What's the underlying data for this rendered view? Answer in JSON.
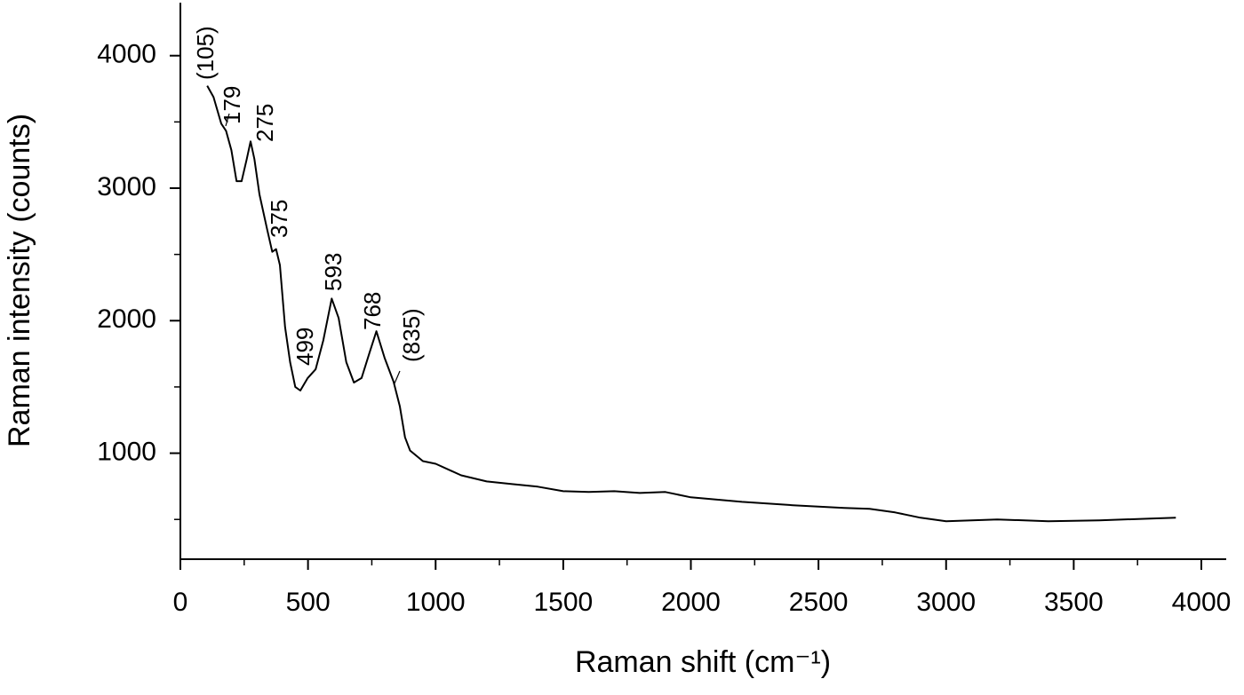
{
  "chart_data": {
    "type": "line",
    "x_label": "Raman shift (cm⁻¹)",
    "y_label": "Raman intensity (counts)",
    "xlim": [
      0,
      4100
    ],
    "ylim": [
      200,
      4400
    ],
    "xticks": [
      0,
      500,
      1000,
      1500,
      2000,
      2500,
      3000,
      3500,
      4000
    ],
    "yticks": [
      1000,
      2000,
      3000,
      4000
    ],
    "xminorticks": [
      250,
      750,
      1250,
      1750,
      2250,
      2750,
      3250,
      3750
    ],
    "yminorticks": [
      500,
      1500,
      2500,
      3500
    ],
    "grid": false,
    "series": [
      {
        "color": "#000000",
        "x": [
          105,
          130,
          160,
          179,
          200,
          220,
          240,
          260,
          275,
          290,
          310,
          340,
          360,
          375,
          390,
          410,
          430,
          450,
          470,
          499,
          530,
          560,
          593,
          620,
          650,
          680,
          710,
          740,
          768,
          800,
          835,
          860,
          880,
          900,
          950,
          1000,
          1100,
          1200,
          1300,
          1400,
          1500,
          1600,
          1700,
          1800,
          1900,
          2000,
          2200,
          2400,
          2600,
          2700,
          2800,
          2900,
          3000,
          3200,
          3400,
          3600,
          3800,
          3900
        ],
        "values": [
          3773,
          3687,
          3487,
          3433,
          3287,
          3053,
          3053,
          3220,
          3353,
          3220,
          2953,
          2687,
          2520,
          2540,
          2420,
          1953,
          1687,
          1500,
          1473,
          1567,
          1633,
          1853,
          2167,
          2020,
          1687,
          1533,
          1567,
          1753,
          1920,
          1720,
          1540,
          1353,
          1120,
          1020,
          940,
          920,
          833,
          787,
          767,
          747,
          713,
          707,
          713,
          700,
          707,
          667,
          633,
          607,
          587,
          580,
          553,
          513,
          487,
          500,
          487,
          493,
          507,
          513
        ]
      }
    ],
    "annotations": [
      "(105)",
      "179",
      "275",
      "375",
      "499",
      "593",
      "768",
      "(835)"
    ]
  }
}
